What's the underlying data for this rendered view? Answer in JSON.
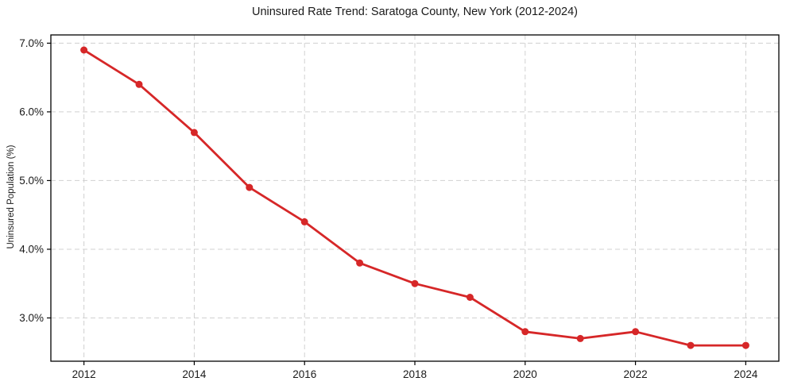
{
  "chart_data": {
    "type": "line",
    "title": "Uninsured Rate Trend: Saratoga County, New York (2012-2024)",
    "xlabel": "",
    "ylabel": "Uninsured Population (%)",
    "x": [
      2012,
      2013,
      2014,
      2015,
      2016,
      2017,
      2018,
      2019,
      2020,
      2021,
      2022,
      2023,
      2024
    ],
    "values": [
      6.9,
      6.4,
      5.7,
      4.9,
      4.4,
      3.8,
      3.5,
      3.3,
      2.8,
      2.7,
      2.8,
      2.6,
      2.6
    ],
    "x_ticks": [
      2012,
      2014,
      2016,
      2018,
      2020,
      2022,
      2024
    ],
    "x_tick_labels": [
      "2012",
      "2014",
      "2016",
      "2018",
      "2020",
      "2022",
      "2024"
    ],
    "y_ticks": [
      3.0,
      4.0,
      5.0,
      6.0,
      7.0
    ],
    "y_tick_labels": [
      "3.0%",
      "4.0%",
      "5.0%",
      "6.0%",
      "7.0%"
    ],
    "xlim": [
      2011.4,
      2024.6
    ],
    "ylim": [
      2.37,
      7.12
    ],
    "grid": true,
    "legend": "none",
    "line_color": "#d62728",
    "marker_color": "#d62728",
    "grid_color": "#d0d0d0",
    "axis_color": "#000000",
    "background_color": "#ffffff"
  }
}
